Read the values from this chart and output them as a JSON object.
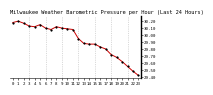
{
  "title": "Milwaukee Weather Barometric Pressure per Hour (Last 24 Hours)",
  "background_color": "#ffffff",
  "line_color": "#cc0000",
  "marker_color": "#000000",
  "grid_color": "#bbbbbb",
  "hours": [
    0,
    1,
    2,
    3,
    4,
    5,
    6,
    7,
    8,
    9,
    10,
    11,
    12,
    13,
    14,
    15,
    16,
    17,
    18,
    19,
    20,
    21,
    22,
    23
  ],
  "pressure": [
    30.18,
    30.2,
    30.17,
    30.13,
    30.12,
    30.15,
    30.1,
    30.08,
    30.12,
    30.1,
    30.09,
    30.08,
    29.95,
    29.88,
    29.87,
    29.87,
    29.83,
    29.8,
    29.72,
    29.68,
    29.62,
    29.55,
    29.48,
    29.42
  ],
  "ylim": [
    29.38,
    30.28
  ],
  "yticks": [
    29.4,
    29.5,
    29.6,
    29.7,
    29.8,
    29.9,
    30.0,
    30.1,
    30.2
  ],
  "ytick_labels": [
    "29.40",
    "29.50",
    "29.60",
    "29.70",
    "29.80",
    "29.90",
    "30.00",
    "30.10",
    "30.20"
  ],
  "xtick_positions": [
    0,
    1,
    2,
    3,
    4,
    5,
    6,
    7,
    8,
    9,
    10,
    11,
    12,
    13,
    14,
    15,
    16,
    17,
    18,
    19,
    20,
    21,
    22,
    23
  ],
  "xtick_labels": [
    "0",
    "1",
    "2",
    "3",
    "4",
    "5",
    "6",
    "7",
    "8",
    "9",
    "10",
    "11",
    "12",
    "13",
    "14",
    "15",
    "16",
    "17",
    "18",
    "19",
    "20",
    "21",
    "22",
    "23"
  ],
  "vgrid_positions": [
    3,
    6,
    9,
    12,
    15,
    18,
    21
  ],
  "title_fontsize": 3.8,
  "tick_fontsize": 3.0,
  "line_width": 0.7,
  "marker_size": 1.2
}
